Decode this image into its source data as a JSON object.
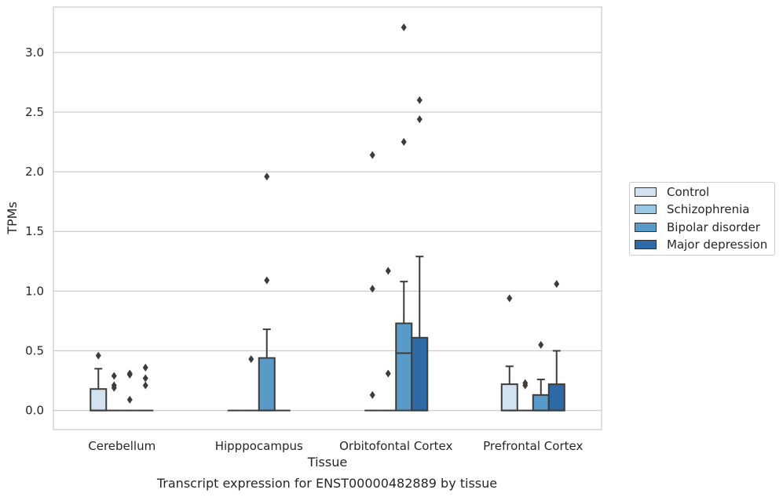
{
  "caption": "Transcript expression for ENST00000482889 by tissue",
  "chart_data": {
    "type": "box",
    "xlabel": "Tissue",
    "ylabel": "TPMs",
    "ylim": [
      -0.16,
      3.38
    ],
    "yticks": [
      "0.0",
      "0.5",
      "1.0",
      "1.5",
      "2.0",
      "2.5",
      "3.0"
    ],
    "grid": "horizontal",
    "legend_position": "right",
    "categories": [
      "Cerebellum",
      "Hipppocampus",
      "Orbitofontal Cortex",
      "Prefrontal Cortex"
    ],
    "series": [
      {
        "name": "Control",
        "color": "#d2e2f1",
        "boxes": [
          {
            "q1": 0.0,
            "median": 0.0,
            "q3": 0.18,
            "whisker_low": 0.0,
            "whisker_high": 0.35,
            "outliers": [
              0.46
            ]
          },
          {
            "q1": 0.0,
            "median": 0.0,
            "q3": 0.0,
            "whisker_low": 0.0,
            "whisker_high": 0.0,
            "outliers": []
          },
          {
            "q1": 0.0,
            "median": 0.0,
            "q3": 0.0,
            "whisker_low": 0.0,
            "whisker_high": 0.0,
            "outliers": [
              0.13,
              1.02,
              2.14
            ]
          },
          {
            "q1": 0.0,
            "median": 0.0,
            "q3": 0.22,
            "whisker_low": 0.0,
            "whisker_high": 0.37,
            "outliers": [
              0.94
            ]
          }
        ]
      },
      {
        "name": "Schizophrenia",
        "color": "#9ac8e0",
        "boxes": [
          {
            "q1": 0.0,
            "median": 0.0,
            "q3": 0.0,
            "whisker_low": 0.0,
            "whisker_high": 0.0,
            "outliers": [
              0.19,
              0.21,
              0.29
            ]
          },
          {
            "q1": 0.0,
            "median": 0.0,
            "q3": 0.0,
            "whisker_low": 0.0,
            "whisker_high": 0.0,
            "outliers": [
              0.43
            ]
          },
          {
            "q1": 0.0,
            "median": 0.0,
            "q3": 0.0,
            "whisker_low": 0.0,
            "whisker_high": 0.0,
            "outliers": [
              0.31,
              1.17
            ]
          },
          {
            "q1": 0.0,
            "median": 0.0,
            "q3": 0.0,
            "whisker_low": 0.0,
            "whisker_high": 0.0,
            "outliers": [
              0.21,
              0.23
            ]
          }
        ]
      },
      {
        "name": "Bipolar disorder",
        "color": "#5a9ac9",
        "boxes": [
          {
            "q1": 0.0,
            "median": 0.0,
            "q3": 0.0,
            "whisker_low": 0.0,
            "whisker_high": 0.0,
            "outliers": [
              0.09,
              0.3,
              0.31
            ]
          },
          {
            "q1": 0.0,
            "median": 0.0,
            "q3": 0.44,
            "whisker_low": 0.0,
            "whisker_high": 0.68,
            "outliers": [
              1.09,
              1.96
            ]
          },
          {
            "q1": 0.0,
            "median": 0.48,
            "q3": 0.73,
            "whisker_low": 0.0,
            "whisker_high": 1.08,
            "outliers": [
              2.25,
              3.21
            ]
          },
          {
            "q1": 0.0,
            "median": 0.0,
            "q3": 0.13,
            "whisker_low": 0.0,
            "whisker_high": 0.26,
            "outliers": [
              0.55
            ]
          }
        ]
      },
      {
        "name": "Major depression",
        "color": "#2e6aa6",
        "boxes": [
          {
            "q1": 0.0,
            "median": 0.0,
            "q3": 0.0,
            "whisker_low": 0.0,
            "whisker_high": 0.0,
            "outliers": [
              0.21,
              0.27,
              0.36
            ]
          },
          {
            "q1": 0.0,
            "median": 0.0,
            "q3": 0.0,
            "whisker_low": 0.0,
            "whisker_high": 0.0,
            "outliers": []
          },
          {
            "q1": 0.0,
            "median": 0.0,
            "q3": 0.61,
            "whisker_low": 0.0,
            "whisker_high": 1.29,
            "outliers": [
              2.44,
              2.6
            ]
          },
          {
            "q1": 0.0,
            "median": 0.0,
            "q3": 0.22,
            "whisker_low": 0.0,
            "whisker_high": 0.5,
            "outliers": [
              1.06
            ]
          }
        ]
      }
    ]
  }
}
